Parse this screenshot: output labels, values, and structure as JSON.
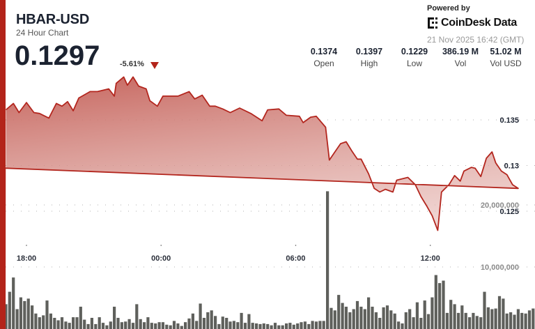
{
  "header": {
    "symbol": "HBAR-USD",
    "subtitle": "24 Hour Chart",
    "price": "0.1297",
    "change": "-5.61%",
    "change_direction": "down",
    "down_color": "#b3241a"
  },
  "stats": [
    {
      "value": "0.1374",
      "label": "Open"
    },
    {
      "value": "0.1397",
      "label": "High"
    },
    {
      "value": "0.1229",
      "label": "Low"
    },
    {
      "value": "386.19 M",
      "label": "Vol"
    },
    {
      "value": "51.02 M",
      "label": "Vol USD"
    }
  ],
  "branding": {
    "powered_by": "Powered by",
    "logo_text": "CoinDesk Data",
    "timestamp": "21 Nov 2025 16:42 (GMT)"
  },
  "chart_data": {
    "type": "area",
    "grid": "horizontal dotted",
    "colors": {
      "line": "#b3261e",
      "fill_top": "#c25a52",
      "volume": "#5f605c",
      "accent": "#b3241a"
    },
    "x_ticks": [
      "18:00",
      "00:00",
      "06:00",
      "12:00"
    ],
    "price_axis": {
      "ticks": [
        0.125,
        0.13,
        0.135
      ],
      "tick_labels": [
        "0.125",
        "0.13",
        "0.135"
      ]
    },
    "volume_axis": {
      "ticks": [
        10000000,
        20000000
      ],
      "tick_labels": [
        "10,000,000",
        "20,000,000"
      ]
    },
    "price_series": [
      [
        "17:05",
        0.1361
      ],
      [
        "17:25",
        0.1368
      ],
      [
        "17:40",
        0.1358
      ],
      [
        "18:00",
        0.1369
      ],
      [
        "18:20",
        0.1358
      ],
      [
        "18:35",
        0.1357
      ],
      [
        "19:00",
        0.1352
      ],
      [
        "19:20",
        0.1368
      ],
      [
        "19:35",
        0.1365
      ],
      [
        "19:50",
        0.137
      ],
      [
        "20:05",
        0.136
      ],
      [
        "20:20",
        0.1374
      ],
      [
        "20:50",
        0.1381
      ],
      [
        "21:10",
        0.1381
      ],
      [
        "21:40",
        0.1384
      ],
      [
        "21:55",
        0.1376
      ],
      [
        "22:00",
        0.139
      ],
      [
        "22:20",
        0.1397
      ],
      [
        "22:30",
        0.1388
      ],
      [
        "22:45",
        0.1397
      ],
      [
        "23:00",
        0.1387
      ],
      [
        "23:20",
        0.1384
      ],
      [
        "23:30",
        0.1371
      ],
      [
        "23:50",
        0.1365
      ],
      [
        "00:05",
        0.1376
      ],
      [
        "00:45",
        0.1376
      ],
      [
        "01:15",
        0.1381
      ],
      [
        "01:30",
        0.1373
      ],
      [
        "01:50",
        0.1377
      ],
      [
        "02:10",
        0.1365
      ],
      [
        "02:25",
        0.1365
      ],
      [
        "02:45",
        0.1362
      ],
      [
        "03:05",
        0.1358
      ],
      [
        "03:30",
        0.1363
      ],
      [
        "04:00",
        0.1357
      ],
      [
        "04:30",
        0.1349
      ],
      [
        "04:45",
        0.1361
      ],
      [
        "05:15",
        0.1362
      ],
      [
        "05:35",
        0.1355
      ],
      [
        "06:10",
        0.1354
      ],
      [
        "06:20",
        0.1347
      ],
      [
        "06:40",
        0.1353
      ],
      [
        "06:55",
        0.1354
      ],
      [
        "07:20",
        0.1342
      ],
      [
        "07:30",
        0.1306
      ],
      [
        "07:45",
        0.1315
      ],
      [
        "08:00",
        0.1324
      ],
      [
        "08:15",
        0.1326
      ],
      [
        "08:30",
        0.1316
      ],
      [
        "08:45",
        0.1307
      ],
      [
        "08:55",
        0.1307
      ],
      [
        "09:15",
        0.1291
      ],
      [
        "09:30",
        0.1275
      ],
      [
        "09:45",
        0.1271
      ],
      [
        "10:00",
        0.1274
      ],
      [
        "10:20",
        0.1271
      ],
      [
        "10:30",
        0.1284
      ],
      [
        "11:00",
        0.1287
      ],
      [
        "11:20",
        0.1279
      ],
      [
        "11:35",
        0.1266
      ],
      [
        "11:50",
        0.1256
      ],
      [
        "12:05",
        0.1245
      ],
      [
        "12:20",
        0.1229
      ],
      [
        "12:30",
        0.1271
      ],
      [
        "12:50",
        0.1279
      ],
      [
        "13:05",
        0.1289
      ],
      [
        "13:20",
        0.1283
      ],
      [
        "13:30",
        0.1294
      ],
      [
        "13:50",
        0.1298
      ],
      [
        "14:00",
        0.1297
      ],
      [
        "14:15",
        0.1288
      ],
      [
        "14:30",
        0.1308
      ],
      [
        "14:45",
        0.1315
      ],
      [
        "14:55",
        0.1303
      ],
      [
        "15:10",
        0.1294
      ],
      [
        "15:25",
        0.129
      ],
      [
        "15:40",
        0.1279
      ],
      [
        "15:55",
        0.1275
      ],
      [
        "16:10",
        0.1298
      ],
      [
        "16:25",
        0.1297
      ],
      [
        "16:40",
        0.1297
      ]
    ],
    "volume_interval_minutes": 10,
    "volume_first_time": "17:05",
    "volume_millions": [
      4.0,
      6.0,
      8.3,
      3.2,
      5.1,
      4.5,
      4.9,
      3.8,
      2.5,
      1.9,
      2.2,
      4.6,
      2.5,
      1.8,
      1.4,
      1.9,
      1.2,
      1.0,
      1.9,
      1.9,
      3.6,
      1.5,
      0.8,
      1.8,
      0.8,
      1.9,
      1.0,
      0.6,
      1.2,
      3.6,
      1.8,
      1.1,
      1.2,
      1.6,
      1.0,
      4.0,
      1.6,
      1.1,
      1.9,
      1.0,
      0.9,
      1.1,
      1.1,
      0.7,
      0.6,
      1.3,
      0.9,
      0.5,
      1.1,
      1.7,
      2.5,
      1.3,
      4.1,
      1.8,
      2.7,
      3.0,
      2.1,
      0.8,
      2.0,
      1.8,
      1.2,
      1.3,
      1.1,
      2.6,
      1.0,
      2.4,
      1.0,
      0.9,
      0.8,
      0.9,
      0.8,
      0.6,
      1.0,
      0.6,
      0.6,
      0.9,
      1.0,
      0.7,
      0.9,
      1.1,
      1.2,
      0.8,
      1.3,
      1.2,
      1.3,
      1.3,
      22.2,
      3.4,
      3.0,
      5.5,
      4.2,
      3.6,
      2.7,
      3.2,
      4.5,
      3.6,
      3.2,
      5.1,
      3.6,
      2.7,
      1.8,
      3.5,
      3.8,
      3.0,
      2.5,
      1.2,
      0.9,
      2.7,
      3.2,
      1.9,
      4.3,
      1.8,
      4.6,
      2.4,
      5.1,
      8.7,
      7.4,
      7.8,
      2.6,
      4.7,
      4.0,
      2.6,
      3.8,
      2.6,
      1.9,
      2.6,
      2.1,
      1.9,
      6.0,
      3.5,
      3.2,
      3.3,
      5.3,
      4.9,
      2.5,
      2.7,
      2.3,
      3.2,
      2.6,
      2.5,
      3.0,
      3.3,
      2.9
    ]
  }
}
